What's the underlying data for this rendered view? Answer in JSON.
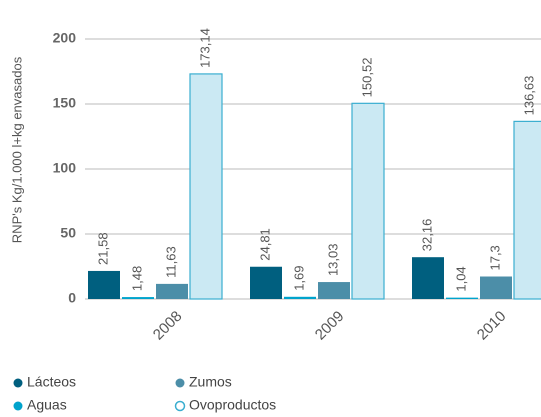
{
  "chart_data": {
    "type": "bar",
    "y_label": "RNP's Kg/1.000 l+kg envasados",
    "categories": [
      "2008",
      "2009",
      "2010"
    ],
    "series": [
      {
        "name": "Lácteos",
        "color": "#005f7f",
        "values": [
          21.58,
          24.81,
          32.16
        ],
        "value_labels": [
          "21,58",
          "24,81",
          "32,16"
        ]
      },
      {
        "name": "Aguas",
        "color": "#00a3cc",
        "values": [
          1.48,
          1.69,
          1.04
        ],
        "value_labels": [
          "1,48",
          "1,69",
          "1,04"
        ]
      },
      {
        "name": "Zumos",
        "color": "#4c8ea8",
        "values": [
          11.63,
          13.03,
          17.3
        ],
        "value_labels": [
          "11,63",
          "13,03",
          "17,3"
        ]
      },
      {
        "name": "Ovoproductos",
        "color": "#cbe9f3",
        "values": [
          173.14,
          150.52,
          136.63
        ],
        "value_labels": [
          "173,14",
          "150,52",
          "136,63"
        ]
      }
    ],
    "ylim": [
      0,
      200
    ],
    "yticks": [
      0,
      50,
      100,
      150,
      200
    ],
    "grid": true
  }
}
